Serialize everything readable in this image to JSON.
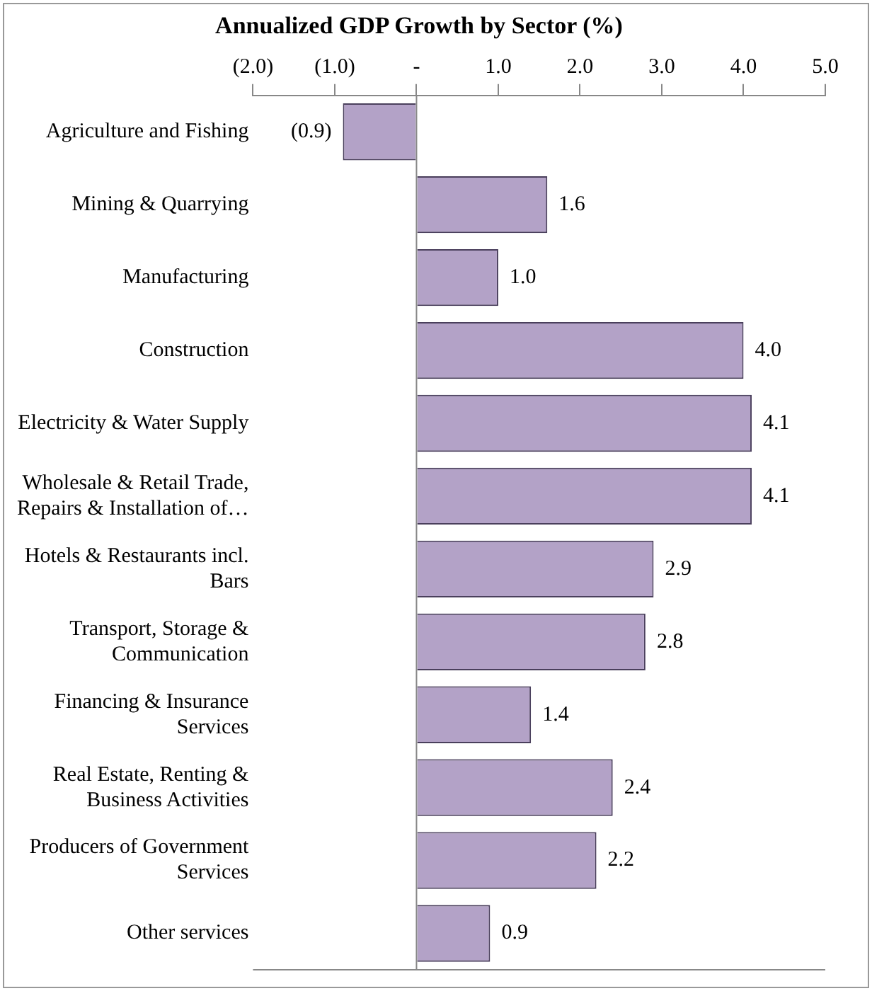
{
  "chart_data": {
    "type": "bar",
    "orientation": "horizontal",
    "title": "Annualized GDP Growth by Sector (%)",
    "categories": [
      "Agriculture and Fishing",
      "Mining & Quarrying",
      "Manufacturing",
      "Construction",
      "Electricity & Water Supply",
      "Wholesale & Retail Trade, Repairs & Installation of…",
      "Hotels & Restaurants incl. Bars",
      "Transport, Storage & Communication",
      "Financing & Insurance Services",
      "Real Estate, Renting & Business Activities",
      "Producers of Government Services",
      "Other services"
    ],
    "values": [
      -0.9,
      1.6,
      1.0,
      4.0,
      4.1,
      4.1,
      2.9,
      2.8,
      1.4,
      2.4,
      2.2,
      0.9
    ],
    "value_labels": [
      "(0.9)",
      "1.6",
      "1.0",
      "4.0",
      "4.1",
      "4.1",
      "2.9",
      "2.8",
      "1.4",
      "2.4",
      "2.2",
      "0.9"
    ],
    "color": "#b3a2c7",
    "xlim": [
      -2,
      5
    ],
    "xticks": [
      {
        "value": -2,
        "label": "(2.0)"
      },
      {
        "value": -1,
        "label": "(1.0)"
      },
      {
        "value": 0,
        "label": "-"
      },
      {
        "value": 1,
        "label": "1.0"
      },
      {
        "value": 2,
        "label": "2.0"
      },
      {
        "value": 3,
        "label": "3.0"
      },
      {
        "value": 4,
        "label": "4.0"
      },
      {
        "value": 5,
        "label": "5.0"
      }
    ],
    "legend": false
  }
}
